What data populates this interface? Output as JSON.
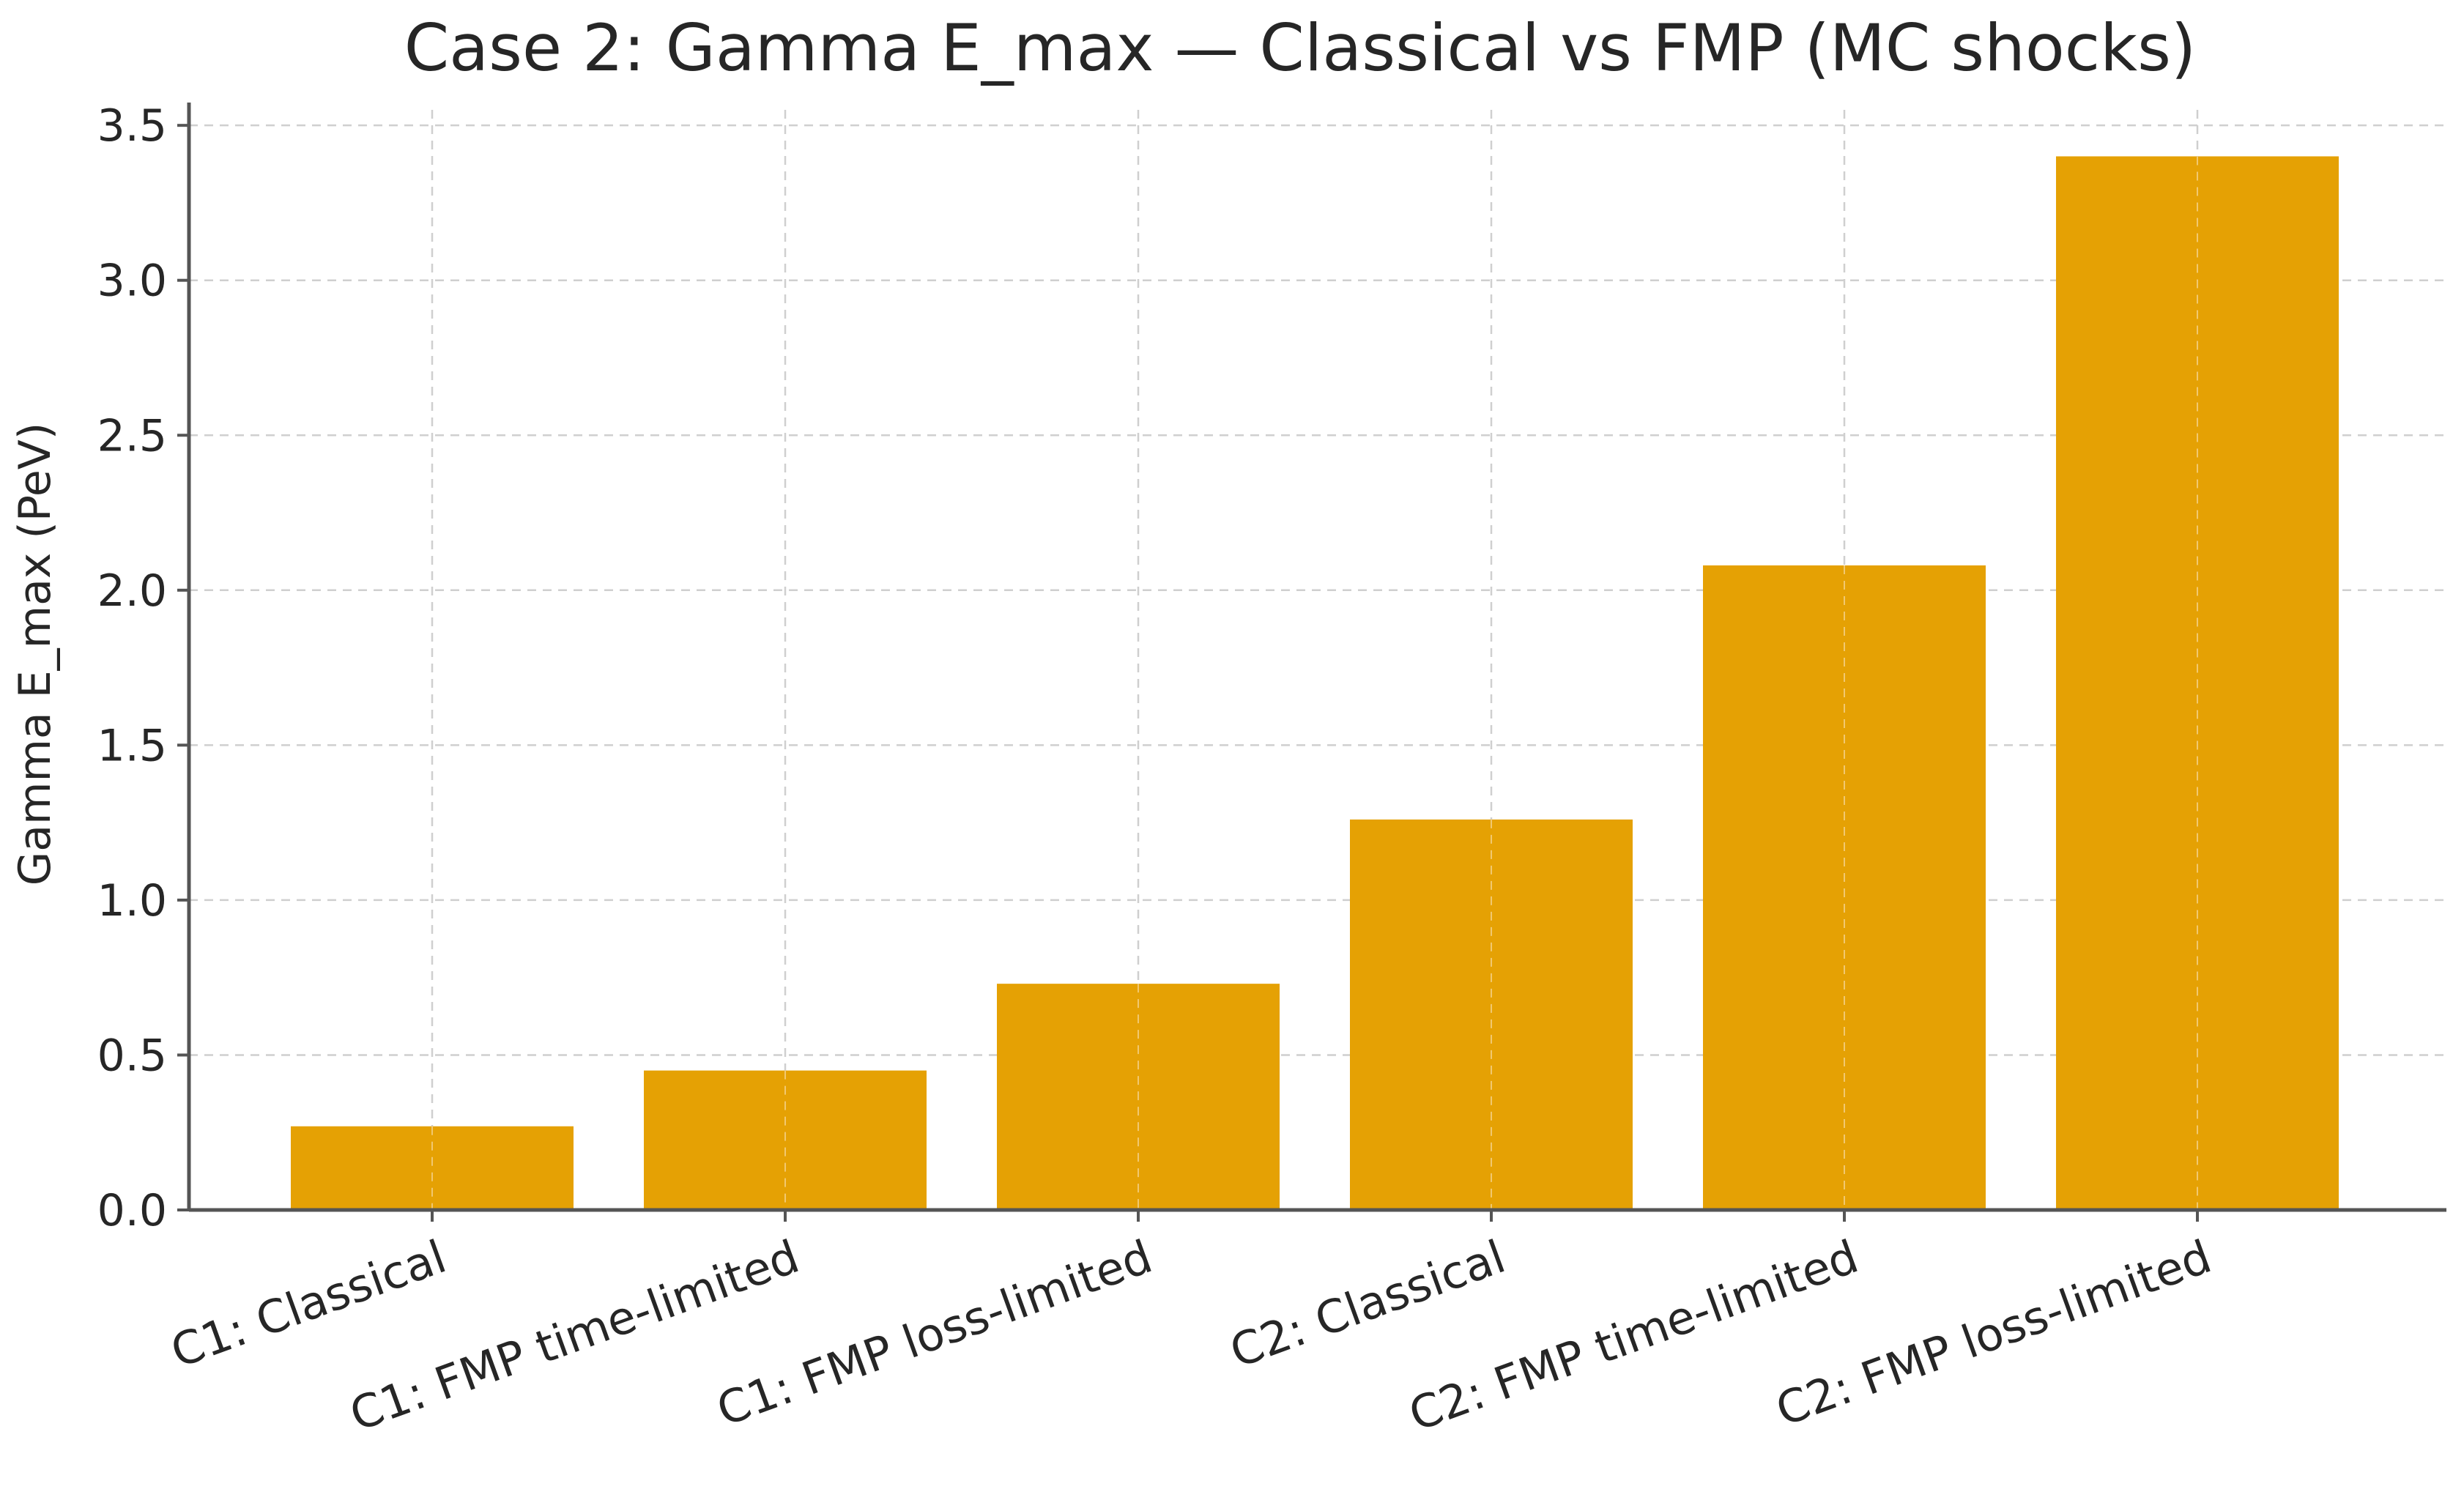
{
  "chart_data": {
    "type": "bar",
    "title": "Case 2: Gamma E_max — Classical vs FMP (MC shocks)",
    "xlabel": "",
    "ylabel": "Gamma E_max (PeV)",
    "categories": [
      "C1: Classical",
      "C1: FMP time-limited",
      "C1: FMP loss-limited",
      "C2: Classical",
      "C2: FMP time-limited",
      "C2: FMP loss-limited"
    ],
    "values": [
      0.27,
      0.45,
      0.73,
      1.26,
      2.08,
      3.4
    ],
    "ylim": [
      0,
      3.55
    ],
    "yticks": [
      "0.0",
      "0.5",
      "1.0",
      "1.5",
      "2.0",
      "2.5",
      "3.0",
      "3.5"
    ],
    "grid": true,
    "bar_color": "#e5a000"
  }
}
